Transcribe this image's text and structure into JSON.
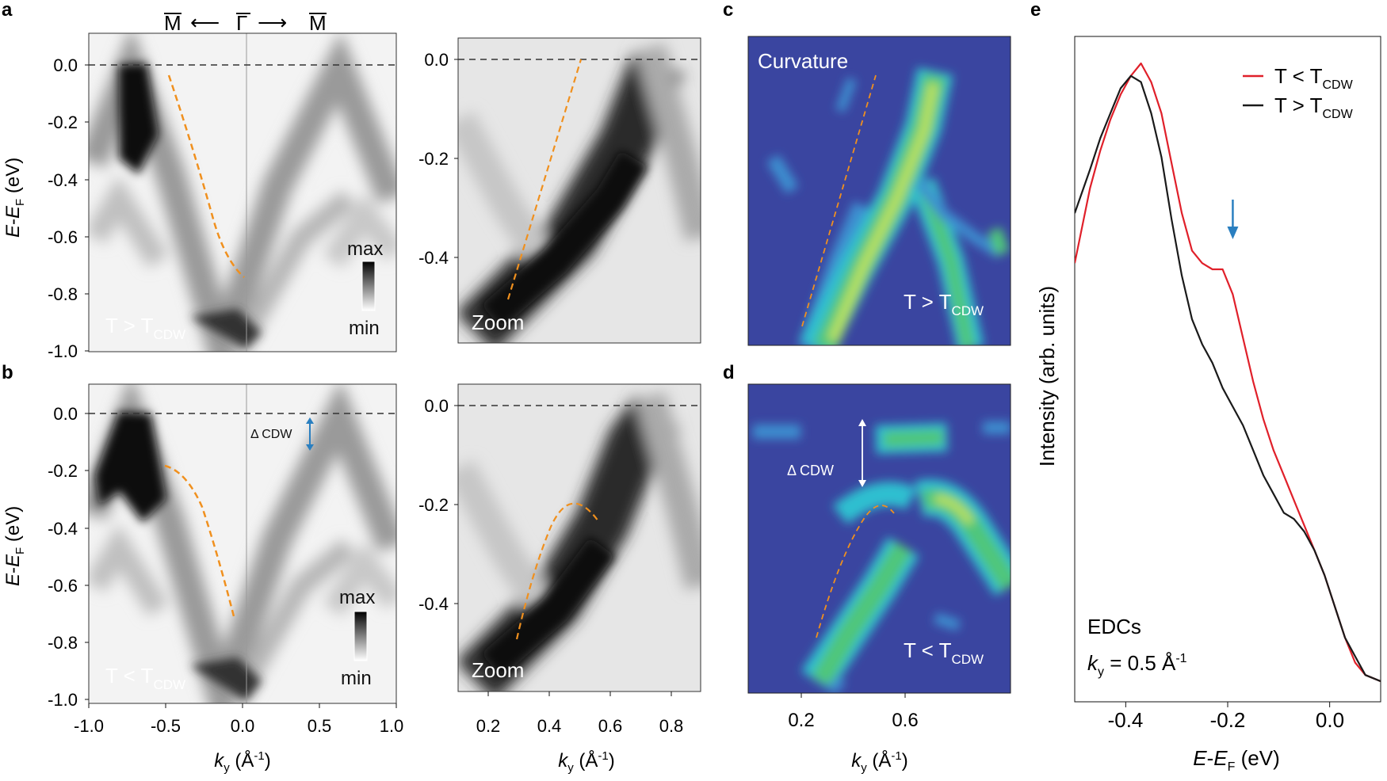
{
  "panel_labels": {
    "a": "a",
    "b": "b",
    "c": "c",
    "d": "d",
    "e": "e"
  },
  "path_header": {
    "left_point": "M",
    "center_point": "Γ",
    "right_point": "M",
    "arrow_left": "⟵",
    "arrow_right": "⟶"
  },
  "colors": {
    "red_curve": "#e0202a",
    "black_curve": "#1a1a1a",
    "dispersion_dash": "#f0901e",
    "curvature_bg": "#3a45a0",
    "blue_arrow": "#2a7fc0"
  },
  "axis_labels": {
    "energy_ylabel": {
      "main": "E",
      "dash": "-",
      "e2": "E",
      "sub": "F",
      "units": " (eV)"
    },
    "ky_xlabel": {
      "main": "k",
      "sub": "y",
      "units": " (Å",
      "exp": "-1",
      "close": ")"
    },
    "e_ylabel": "Intensity (arb. units)",
    "e_xlabel": {
      "main": "E",
      "dash": "-",
      "e2": "E",
      "sub": "F",
      "units": " (eV)"
    }
  },
  "ticks": {
    "energy_full": [
      "0.0",
      "-0.2",
      "-0.4",
      "-0.6",
      "-0.8",
      "-1.0"
    ],
    "energy_zoom": [
      "0.0",
      "-0.2",
      "-0.4"
    ],
    "ky_full": [
      "-1.0",
      "-0.5",
      "0.0",
      "0.5",
      "1.0"
    ],
    "ky_zoom": [
      "0.2",
      "0.4",
      "0.6",
      "0.8"
    ],
    "ky_curv": [
      "0.2",
      "0.6"
    ],
    "e_x": [
      "-0.4",
      "-0.2",
      "0.0"
    ]
  },
  "annotations": {
    "colorbar_max": "max",
    "colorbar_min": "min",
    "zoom": "Zoom",
    "curvature": "Curvature",
    "delta_cdw": "Δ CDW",
    "t_gt": {
      "main": "T > T",
      "sub": "CDW"
    },
    "t_lt": {
      "main": "T < T",
      "sub": "CDW"
    },
    "edcs": "EDCs",
    "ky_value": {
      "main": "k",
      "sub": "y",
      "rest": " = 0.5 Å",
      "exp": "-1"
    }
  },
  "legend": [
    {
      "label_main": "T < T",
      "label_sub": "CDW",
      "color": "#e0202a"
    },
    {
      "label_main": "T > T",
      "label_sub": "CDW",
      "color": "#1a1a1a"
    }
  ],
  "chart_data": {
    "type": "line",
    "title": "EDCs",
    "xlabel": "E-EF (eV)",
    "ylabel": "Intensity (arb. units)",
    "xlim": [
      -0.5,
      0.1
    ],
    "ylim": [
      0,
      1
    ],
    "series": [
      {
        "name": "T < TCDW",
        "color": "#e0202a",
        "x": [
          -0.5,
          -0.47,
          -0.45,
          -0.43,
          -0.41,
          -0.39,
          -0.37,
          -0.35,
          -0.33,
          -0.31,
          -0.29,
          -0.27,
          -0.25,
          -0.23,
          -0.21,
          -0.19,
          -0.17,
          -0.15,
          -0.13,
          -0.11,
          -0.09,
          -0.07,
          -0.05,
          -0.03,
          -0.01,
          0.01,
          0.03,
          0.05,
          0.07,
          0.1
        ],
        "values": [
          0.68,
          0.8,
          0.86,
          0.91,
          0.95,
          0.98,
          1.0,
          0.97,
          0.92,
          0.84,
          0.76,
          0.7,
          0.68,
          0.67,
          0.67,
          0.63,
          0.56,
          0.49,
          0.43,
          0.38,
          0.34,
          0.3,
          0.26,
          0.22,
          0.18,
          0.13,
          0.08,
          0.04,
          0.02,
          0.01
        ]
      },
      {
        "name": "T > TCDW",
        "color": "#1a1a1a",
        "x": [
          -0.5,
          -0.47,
          -0.45,
          -0.43,
          -0.41,
          -0.39,
          -0.37,
          -0.35,
          -0.33,
          -0.31,
          -0.29,
          -0.27,
          -0.25,
          -0.23,
          -0.21,
          -0.19,
          -0.17,
          -0.15,
          -0.13,
          -0.11,
          -0.09,
          -0.07,
          -0.05,
          -0.03,
          -0.01,
          0.01,
          0.03,
          0.05,
          0.07,
          0.1
        ],
        "values": [
          0.76,
          0.83,
          0.88,
          0.92,
          0.96,
          0.98,
          0.97,
          0.92,
          0.85,
          0.75,
          0.66,
          0.59,
          0.55,
          0.52,
          0.48,
          0.45,
          0.42,
          0.38,
          0.34,
          0.31,
          0.28,
          0.27,
          0.25,
          0.22,
          0.18,
          0.13,
          0.08,
          0.05,
          0.02,
          0.01
        ]
      }
    ],
    "arrow_at_x": -0.19
  }
}
